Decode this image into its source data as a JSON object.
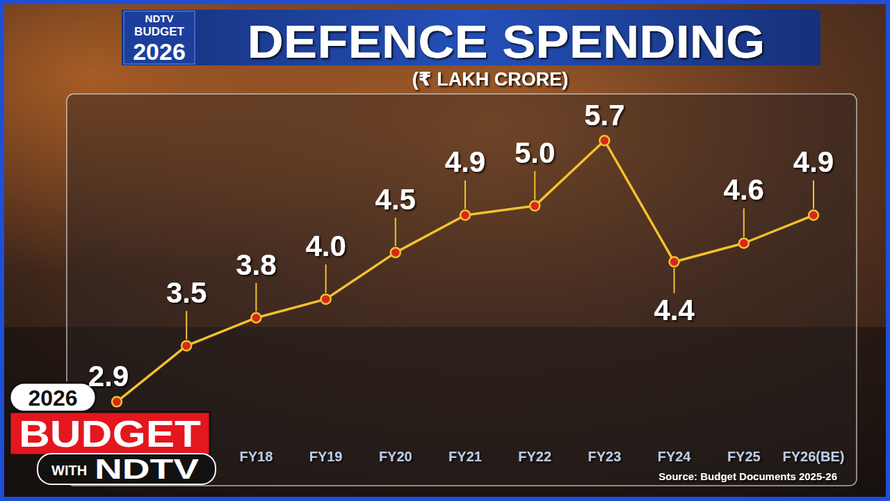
{
  "chart_data": {
    "type": "line",
    "title": "DEFENCE SPENDING",
    "subtitle": "(₹ LAKH CRORE)",
    "categories": [
      null,
      null,
      "FY18",
      "FY19",
      "FY20",
      "FY21",
      "FY22",
      "FY23",
      "FY24",
      "FY25",
      "FY26(BE)"
    ],
    "values": [
      2.9,
      3.5,
      3.8,
      4.0,
      4.5,
      4.9,
      5.0,
      5.7,
      4.4,
      4.6,
      4.9
    ],
    "color": "#f2c12e",
    "marker": "circle",
    "line_style": "solid",
    "ylim": [
      2.0,
      6.2
    ],
    "grid": false,
    "data_labels": true,
    "tick_labels": "x",
    "source": "Source: Budget Documents 2025-26"
  },
  "header": {
    "badge": [
      "NDTV",
      "BUDGET",
      "2026"
    ]
  },
  "logo": {
    "year": "2026",
    "word": "BUDGET",
    "with": "WITH",
    "brand": "NDTV"
  }
}
